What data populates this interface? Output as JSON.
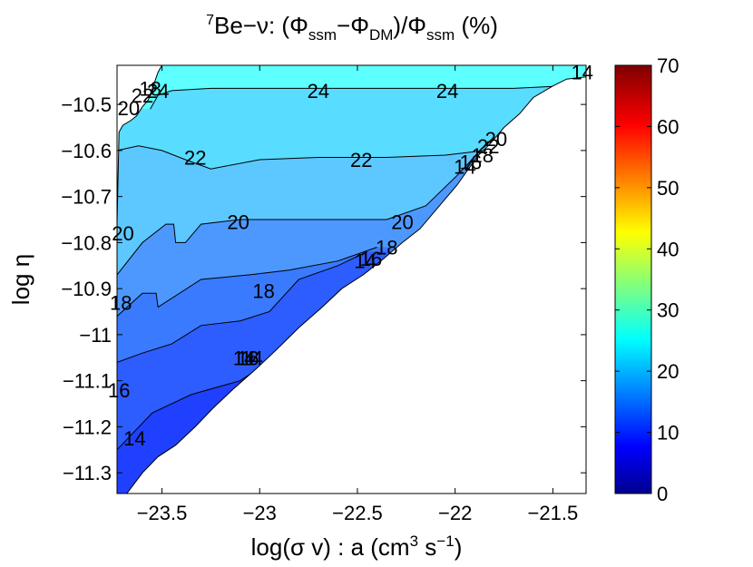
{
  "chart_data": {
    "type": "contour",
    "title": {
      "superscript": "7",
      "prefix": "Be−ν: (Φ",
      "sub1": "ssm",
      "mid": "−Φ",
      "sub2": "DM",
      "mid2": ")/Φ",
      "sub3": "ssm",
      "suffix": " (%)"
    },
    "xlabel": {
      "prefix": "log(σ v) : a (cm",
      "sup1": "3",
      "mid": " s",
      "sup2": "−1",
      "suffix": ")"
    },
    "ylabel": "log η",
    "xlim": [
      -23.73,
      -21.33
    ],
    "ylim": [
      -11.345,
      -10.415
    ],
    "x_ticks": [
      -23.5,
      -23,
      -22.5,
      -22,
      -21.5
    ],
    "x_tick_labels": [
      "−23.5",
      "−23",
      "−22.5",
      "−22",
      "−21.5"
    ],
    "y_ticks": [
      -10.5,
      -10.6,
      -10.7,
      -10.8,
      -10.9,
      -11,
      -11.1,
      -11.2,
      -11.3
    ],
    "y_tick_labels": [
      "−10.5",
      "−10.6",
      "−10.7",
      "−10.8",
      "−10.9",
      "−11",
      "−11.1",
      "−11.2",
      "−11.3"
    ],
    "colorbar": {
      "min": 0,
      "max": 70,
      "ticks": [
        0,
        10,
        20,
        30,
        40,
        50,
        60,
        70
      ],
      "tick_labels": [
        "0",
        "10",
        "20",
        "30",
        "40",
        "50",
        "60",
        "70"
      ],
      "colormap": "jet"
    },
    "levels": [
      {
        "min": 12,
        "max": 14,
        "color": "#2040ff"
      },
      {
        "min": 14,
        "max": 16,
        "color": "#2d5cff"
      },
      {
        "min": 16,
        "max": 18,
        "color": "#3a7aff"
      },
      {
        "min": 18,
        "max": 20,
        "color": "#4d98ff"
      },
      {
        "min": 20,
        "max": 22,
        "color": "#5cc8ff"
      },
      {
        "min": 22,
        "max": 24,
        "color": "#58dcff"
      },
      {
        "min": 24,
        "max": 26,
        "color": "#5effff"
      }
    ],
    "contour_lines": [
      {
        "level": 14,
        "points": [
          [
            -23.73,
            -11.25
          ],
          [
            -23.55,
            -11.17
          ],
          [
            -23.35,
            -11.13
          ],
          [
            -23.1,
            -11.1
          ],
          [
            -22.92,
            -11.05
          ]
        ]
      },
      {
        "level": 16,
        "points": [
          [
            -23.73,
            -11.06
          ],
          [
            -23.6,
            -11.04
          ],
          [
            -23.45,
            -11.02
          ],
          [
            -23.3,
            -10.98
          ],
          [
            -23.1,
            -10.97
          ],
          [
            -22.95,
            -10.95
          ],
          [
            -22.8,
            -10.88
          ],
          [
            -22.6,
            -10.85
          ],
          [
            -22.45,
            -10.82
          ]
        ]
      },
      {
        "level": 18,
        "points": [
          [
            -23.73,
            -10.96
          ],
          [
            -23.6,
            -10.91
          ],
          [
            -23.53,
            -10.91
          ],
          [
            -23.52,
            -10.94
          ],
          [
            -23.3,
            -10.88
          ],
          [
            -23.05,
            -10.87
          ],
          [
            -22.85,
            -10.86
          ],
          [
            -22.6,
            -10.84
          ],
          [
            -22.4,
            -10.81
          ]
        ]
      },
      {
        "level": 20,
        "points": [
          [
            -23.73,
            -10.87
          ],
          [
            -23.6,
            -10.8
          ],
          [
            -23.48,
            -10.76
          ],
          [
            -23.44,
            -10.76
          ],
          [
            -23.43,
            -10.8
          ],
          [
            -23.38,
            -10.8
          ],
          [
            -23.3,
            -10.76
          ],
          [
            -23.1,
            -10.75
          ],
          [
            -22.7,
            -10.75
          ],
          [
            -22.35,
            -10.75
          ],
          [
            -22.15,
            -10.72
          ],
          [
            -21.98,
            -10.65
          ],
          [
            -21.83,
            -10.58
          ]
        ]
      },
      {
        "level": 22,
        "points": [
          [
            -23.73,
            -10.6
          ],
          [
            -23.62,
            -10.59
          ],
          [
            -23.5,
            -10.6
          ],
          [
            -23.38,
            -10.62
          ],
          [
            -23.25,
            -10.64
          ],
          [
            -23.0,
            -10.62
          ],
          [
            -22.7,
            -10.615
          ],
          [
            -22.35,
            -10.615
          ],
          [
            -22.05,
            -10.61
          ],
          [
            -21.85,
            -10.6
          ]
        ]
      },
      {
        "level": 24,
        "points": [
          [
            -23.56,
            -10.51
          ],
          [
            -23.52,
            -10.48
          ],
          [
            -23.45,
            -10.47
          ],
          [
            -23.25,
            -10.465
          ],
          [
            -22.9,
            -10.465
          ],
          [
            -22.5,
            -10.465
          ],
          [
            -22.1,
            -10.465
          ],
          [
            -21.7,
            -10.465
          ],
          [
            -21.45,
            -10.46
          ]
        ]
      }
    ],
    "contour_labels": [
      {
        "text": "14",
        "x": -23.08,
        "y": -11.05
      },
      {
        "text": "14",
        "x": -23.04,
        "y": -11.05
      },
      {
        "text": "14",
        "x": -22.46,
        "y": -10.84
      },
      {
        "text": "14",
        "x": -21.95,
        "y": -10.635
      },
      {
        "text": "14",
        "x": -21.35,
        "y": -10.43
      },
      {
        "text": "14",
        "x": -23.64,
        "y": -11.225
      },
      {
        "text": "16",
        "x": -23.06,
        "y": -11.05
      },
      {
        "text": "16",
        "x": -23.72,
        "y": -11.12
      },
      {
        "text": "16",
        "x": -22.43,
        "y": -10.835
      },
      {
        "text": "16",
        "x": -21.92,
        "y": -10.625
      },
      {
        "text": "18",
        "x": -23.71,
        "y": -10.93
      },
      {
        "text": "18",
        "x": -22.98,
        "y": -10.905
      },
      {
        "text": "18",
        "x": -22.35,
        "y": -10.81
      },
      {
        "text": "18",
        "x": -21.86,
        "y": -10.61
      },
      {
        "text": "18",
        "x": -23.56,
        "y": -10.465
      },
      {
        "text": "20",
        "x": -23.7,
        "y": -10.78
      },
      {
        "text": "20",
        "x": -23.11,
        "y": -10.755
      },
      {
        "text": "20",
        "x": -22.27,
        "y": -10.755
      },
      {
        "text": "20",
        "x": -21.79,
        "y": -10.575
      },
      {
        "text": "20",
        "x": -23.67,
        "y": -10.508
      },
      {
        "text": "22",
        "x": -23.33,
        "y": -10.615
      },
      {
        "text": "22",
        "x": -22.48,
        "y": -10.62
      },
      {
        "text": "22",
        "x": -23.6,
        "y": -10.48
      },
      {
        "text": "22",
        "x": -21.83,
        "y": -10.59
      },
      {
        "text": "24",
        "x": -23.52,
        "y": -10.47
      },
      {
        "text": "24",
        "x": -22.7,
        "y": -10.47
      },
      {
        "text": "24",
        "x": -22.04,
        "y": -10.47
      }
    ]
  }
}
